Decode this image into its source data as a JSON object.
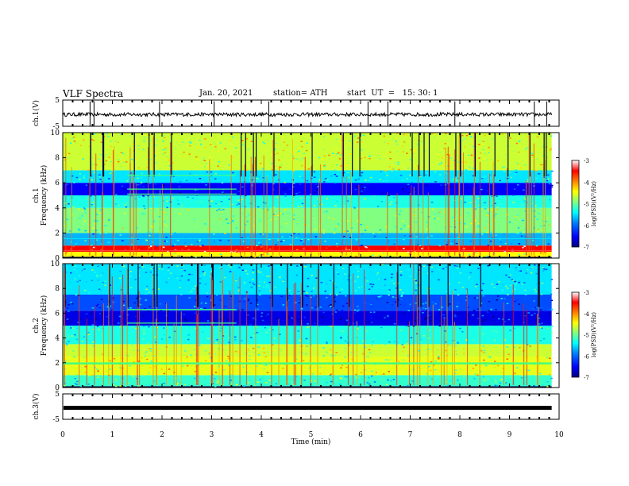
{
  "header": {
    "title": "VLF Spectra",
    "date": "Jan. 20, 2021",
    "station": "station= ATH",
    "start": "start  UT  =   15: 30: 1"
  },
  "colors": {
    "background": "#ffffff",
    "axis": "#000000",
    "spectrogram_low": "#00007f",
    "spectrogram_mid": "#00c8ff",
    "spectrogram_high": "#ff0000",
    "colormap": [
      "#000080",
      "#0000ff",
      "#0080ff",
      "#00ffff",
      "#80ff80",
      "#ffff00",
      "#ff8000",
      "#ff0000",
      "#ffffff"
    ]
  },
  "chart_data": [
    {
      "type": "line",
      "name": "ch1-waveform",
      "ylabel": "ch.1(V)",
      "ylim": [
        -5,
        5
      ],
      "yticks": [
        "5",
        "-5"
      ],
      "xlim": [
        0,
        10
      ],
      "description_values": {
        "baseline_v": -0.5,
        "spikes_min": [
          0.55,
          0.63,
          1.95,
          3.05,
          4.15,
          6.15,
          6.55,
          7.9,
          9.5,
          9.75
        ]
      }
    },
    {
      "type": "heatmap",
      "name": "ch1-spectrogram",
      "ylabel": "ch.1\nFrequency (kHz)",
      "xlim": [
        0,
        10
      ],
      "ylim": [
        0,
        10
      ],
      "yticks": [
        "0",
        "2",
        "4",
        "6",
        "8",
        "10"
      ],
      "colorbar": {
        "label": "log(PSD)(V²/Hz)",
        "ticks": [
          "-3",
          "-4",
          "-5",
          "-6",
          "-7"
        ],
        "range": [
          -7,
          -3
        ]
      },
      "bands_khz": [
        {
          "f_low": 0.1,
          "f_high": 0.5,
          "level": -4.5
        },
        {
          "f_low": 0.5,
          "f_high": 1.0,
          "level": -3.5
        },
        {
          "f_low": 1.0,
          "f_high": 2.0,
          "level": -5.8
        },
        {
          "f_low": 2.0,
          "f_high": 4.0,
          "level": -5.0
        },
        {
          "f_low": 4.0,
          "f_high": 5.0,
          "level": -5.4
        },
        {
          "f_low": 5.0,
          "f_high": 6.0,
          "level": -6.5
        },
        {
          "f_low": 6.0,
          "f_high": 7.0,
          "level": -5.6
        },
        {
          "f_low": 7.0,
          "f_high": 10.0,
          "level": -4.7
        }
      ],
      "tones": [
        {
          "freq_khz": 6.6,
          "t_start": 1.3,
          "t_end": 3.5
        },
        {
          "freq_khz": 5.5,
          "t_start": 1.3,
          "t_end": 3.5
        },
        {
          "freq_khz": 5.1,
          "t_start": 1.3,
          "t_end": 3.5
        }
      ]
    },
    {
      "type": "heatmap",
      "name": "ch2-spectrogram",
      "ylabel": "ch.2\nFrequency (kHz)",
      "xlim": [
        0,
        10
      ],
      "ylim": [
        0,
        10
      ],
      "yticks": [
        "0",
        "2",
        "4",
        "6",
        "8",
        "10"
      ],
      "colorbar": {
        "label": "log(PSD)(V²/Hz)",
        "ticks": [
          "-3",
          "-4",
          "-5",
          "-6",
          "-7"
        ],
        "range": [
          -7,
          -3
        ]
      },
      "bands_khz": [
        {
          "f_low": 0.1,
          "f_high": 1.0,
          "level": -5.3
        },
        {
          "f_low": 1.0,
          "f_high": 2.5,
          "level": -4.6
        },
        {
          "f_low": 2.5,
          "f_high": 3.5,
          "level": -4.7
        },
        {
          "f_low": 3.5,
          "f_high": 5.0,
          "level": -5.4
        },
        {
          "f_low": 5.0,
          "f_high": 6.2,
          "level": -6.6
        },
        {
          "f_low": 6.2,
          "f_high": 7.5,
          "level": -6.2
        },
        {
          "f_low": 7.5,
          "f_high": 10.0,
          "level": -5.6
        }
      ],
      "tones": [
        {
          "freq_khz": 1.95,
          "t_start": 0,
          "t_end": 9.85
        },
        {
          "freq_khz": 6.3,
          "t_start": 1.3,
          "t_end": 3.5
        },
        {
          "freq_khz": 5.2,
          "t_start": 1.3,
          "t_end": 3.5
        }
      ]
    },
    {
      "type": "line",
      "name": "ch3-waveform",
      "ylabel": "ch.3(V)",
      "ylim": [
        -5,
        5
      ],
      "yticks": [
        "5",
        "-5"
      ],
      "xlim": [
        0,
        10
      ],
      "description_values": {
        "baseline_v": -0.5
      }
    }
  ],
  "xaxis": {
    "label": "Time (min)",
    "ticks": [
      "0",
      "1",
      "2",
      "3",
      "4",
      "5",
      "6",
      "7",
      "8",
      "9",
      "10"
    ]
  }
}
